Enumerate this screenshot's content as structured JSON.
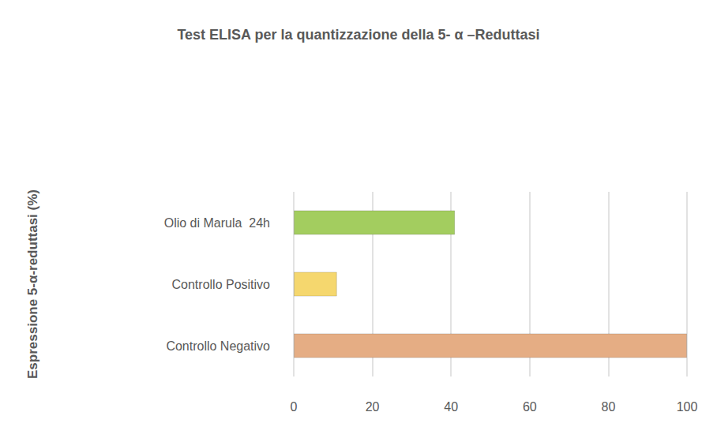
{
  "chart_data": {
    "type": "bar",
    "title": "Test ELISA per la quantizzazione della 5- α –Reduttasi",
    "y_label": "Espressione 5-α-reduttasi (%)",
    "orientation": "horizontal",
    "categories": [
      "Controllo Negativo",
      "Controllo Positivo",
      "Olio di Marula  24h"
    ],
    "values": [
      100,
      11,
      41
    ],
    "colors": [
      "#e5ad84",
      "#f5d76e",
      "#a3cd5f"
    ],
    "xlim": [
      0,
      100
    ],
    "xticks": [
      0,
      20,
      40,
      60,
      80,
      100
    ],
    "grid": true
  }
}
